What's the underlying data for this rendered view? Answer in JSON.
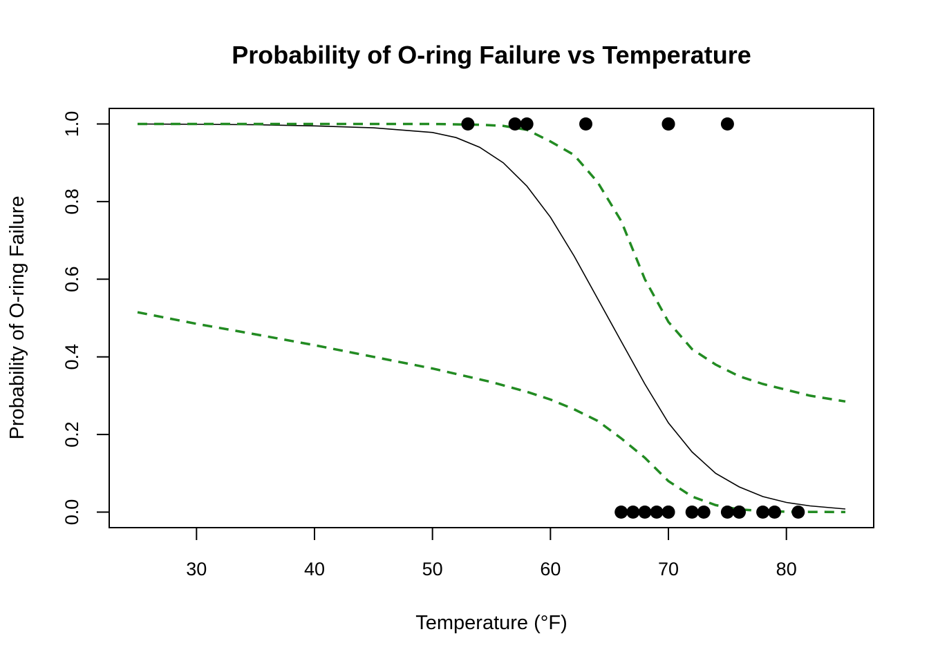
{
  "chart_data": {
    "type": "scatter",
    "title": "Probability of O-ring Failure vs Temperature",
    "xlabel": "Temperature (°F)",
    "ylabel": "Probability of O-ring Failure",
    "xlim": [
      22.6,
      87.4
    ],
    "ylim": [
      -0.04,
      1.04
    ],
    "xticks": [
      30,
      40,
      50,
      60,
      70,
      80
    ],
    "yticks": [
      0.0,
      0.2,
      0.4,
      0.6,
      0.8,
      1.0
    ],
    "xtick_labels": [
      "30",
      "40",
      "50",
      "60",
      "70",
      "80"
    ],
    "ytick_labels": [
      "0.0",
      "0.2",
      "0.4",
      "0.6",
      "0.8",
      "1.0"
    ],
    "grid": false,
    "points": {
      "x": [
        53,
        57,
        58,
        63,
        70,
        70,
        75,
        66,
        67,
        68,
        69,
        70,
        70,
        72,
        73,
        75,
        76,
        76,
        78,
        79,
        81
      ],
      "y": [
        1,
        1,
        1,
        1,
        1,
        1,
        1,
        0,
        0,
        0,
        0,
        0,
        0,
        0,
        0,
        0,
        0,
        0,
        0,
        0,
        0
      ],
      "color": "#000000"
    },
    "series": [
      {
        "style": "solid",
        "color": "#000000",
        "x": [
          25,
          30,
          35,
          40,
          45,
          50,
          52,
          54,
          56,
          58,
          60,
          62,
          64,
          66,
          68,
          70,
          72,
          74,
          76,
          78,
          80,
          82,
          85
        ],
        "y": [
          1.0,
          0.999,
          0.998,
          0.995,
          0.99,
          0.978,
          0.965,
          0.94,
          0.9,
          0.84,
          0.76,
          0.66,
          0.55,
          0.44,
          0.33,
          0.23,
          0.155,
          0.1,
          0.065,
          0.04,
          0.025,
          0.016,
          0.008
        ]
      },
      {
        "style": "dashed",
        "color": "#228B22",
        "x": [
          25,
          30,
          35,
          40,
          45,
          50,
          54,
          56,
          58,
          60,
          62,
          64,
          66,
          68,
          70,
          72,
          74,
          76,
          78,
          80,
          82,
          85
        ],
        "y": [
          1.0,
          1.0,
          1.0,
          1.0,
          1.0,
          1.0,
          0.998,
          0.995,
          0.985,
          0.955,
          0.92,
          0.85,
          0.75,
          0.6,
          0.49,
          0.42,
          0.38,
          0.35,
          0.33,
          0.315,
          0.3,
          0.285
        ]
      },
      {
        "style": "dashed",
        "color": "#228B22",
        "x": [
          25,
          30,
          35,
          40,
          45,
          50,
          55,
          58,
          60,
          62,
          64,
          66,
          68,
          70,
          72,
          74,
          76,
          78,
          80,
          82,
          85
        ],
        "y": [
          0.515,
          0.485,
          0.458,
          0.43,
          0.4,
          0.37,
          0.335,
          0.31,
          0.29,
          0.265,
          0.235,
          0.19,
          0.14,
          0.08,
          0.04,
          0.018,
          0.007,
          0.003,
          0.001,
          0.0005,
          0.0002
        ]
      }
    ]
  }
}
